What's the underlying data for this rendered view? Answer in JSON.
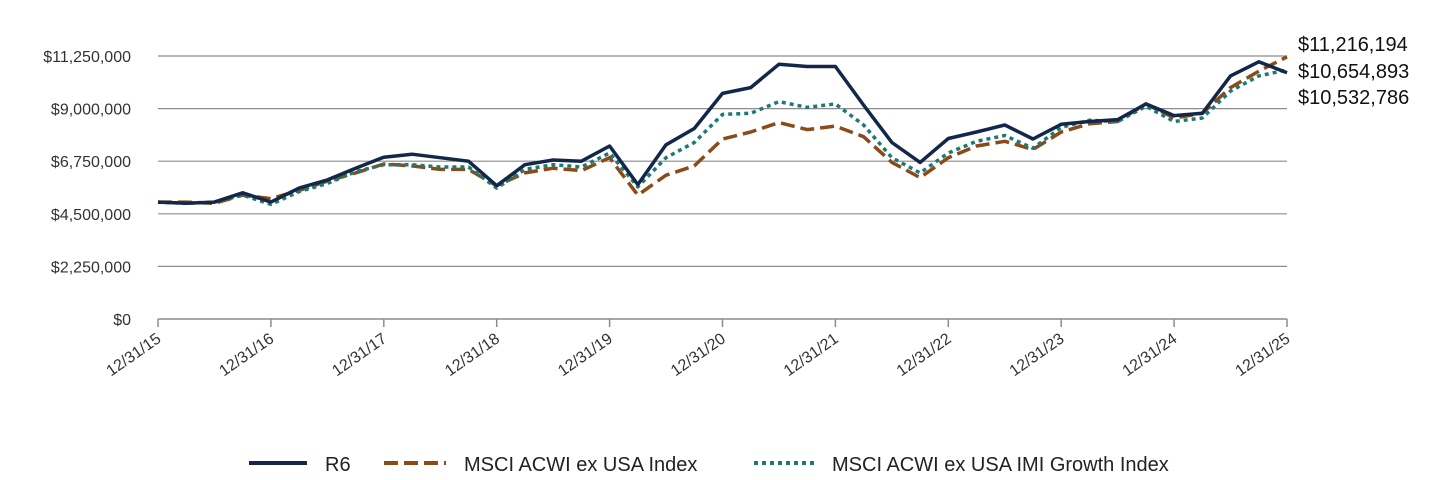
{
  "chart_data": {
    "type": "line",
    "title": "",
    "xlabel": "",
    "ylabel": "",
    "ylim": [
      0,
      11250000
    ],
    "yticks": [
      {
        "value": 0,
        "label": "$0"
      },
      {
        "value": 2250000,
        "label": "$2,250,000"
      },
      {
        "value": 4500000,
        "label": "$4,500,000"
      },
      {
        "value": 6750000,
        "label": "$6,750,000"
      },
      {
        "value": 9000000,
        "label": "$9,000,000"
      },
      {
        "value": 11250000,
        "label": "$11,250,000"
      }
    ],
    "grid": true,
    "xlim": [
      0,
      40
    ],
    "xticks": [
      {
        "value": 0,
        "label": "12/31/15"
      },
      {
        "value": 4,
        "label": "12/31/16"
      },
      {
        "value": 8,
        "label": "12/31/17"
      },
      {
        "value": 12,
        "label": "12/31/18"
      },
      {
        "value": 16,
        "label": "12/31/19"
      },
      {
        "value": 20,
        "label": "12/31/20"
      },
      {
        "value": 24,
        "label": "12/31/21"
      },
      {
        "value": 28,
        "label": "12/31/22"
      },
      {
        "value": 32,
        "label": "12/31/23"
      },
      {
        "value": 36,
        "label": "12/31/24"
      },
      {
        "value": 40,
        "label": "12/31/25"
      }
    ],
    "series": [
      {
        "name": "R6",
        "color": "#13274a",
        "dash": "solid",
        "values": [
          5000000,
          4950000,
          5000000,
          5400000,
          5000000,
          5600000,
          5950000,
          6450000,
          6920000,
          7050000,
          6900000,
          6750000,
          5700000,
          6600000,
          6800000,
          6750000,
          7400000,
          5750000,
          7450000,
          8150000,
          9650000,
          9900000,
          10900000,
          10800000,
          10800000,
          9150000,
          7550000,
          6700000,
          7720000,
          8000000,
          8300000,
          7700000,
          8330000,
          8450000,
          8530000,
          9200000,
          8700000,
          8800000,
          10400000,
          11000000,
          10532786
        ]
      },
      {
        "name": "MSCI ACWI ex USA Index",
        "color": "#8b4a17",
        "dash": "dashed",
        "values": [
          5000000,
          5000000,
          4950000,
          5300000,
          5150000,
          5500000,
          5900000,
          6250000,
          6630000,
          6550000,
          6400000,
          6400000,
          5700000,
          6250000,
          6450000,
          6350000,
          6900000,
          5300000,
          6150000,
          6550000,
          7700000,
          8000000,
          8400000,
          8100000,
          8250000,
          7800000,
          6700000,
          6050000,
          6900000,
          7400000,
          7600000,
          7250000,
          8000000,
          8350000,
          8450000,
          9200000,
          8600000,
          8800000,
          9900000,
          10600000,
          11216194
        ]
      },
      {
        "name": "MSCI ACWI ex USA IMI Growth Index",
        "color": "#1c7a72",
        "dash": "dotted",
        "values": [
          5000000,
          4950000,
          5000000,
          5300000,
          4900000,
          5450000,
          5800000,
          6300000,
          6600000,
          6600000,
          6500000,
          6500000,
          5600000,
          6400000,
          6600000,
          6500000,
          7100000,
          5650000,
          6900000,
          7550000,
          8750000,
          8800000,
          9300000,
          9050000,
          9200000,
          8300000,
          6900000,
          6250000,
          7100000,
          7600000,
          7850000,
          7300000,
          8200000,
          8500000,
          8450000,
          9100000,
          8450000,
          8600000,
          9750000,
          10400000,
          10654893
        ]
      }
    ],
    "end_labels": [
      "$11,216,194",
      "$10,654,893",
      "$10,532,786"
    ],
    "legend": {
      "position": "bottom",
      "items": [
        "R6",
        "MSCI ACWI ex USA Index",
        "MSCI ACWI ex USA IMI Growth Index"
      ]
    }
  }
}
